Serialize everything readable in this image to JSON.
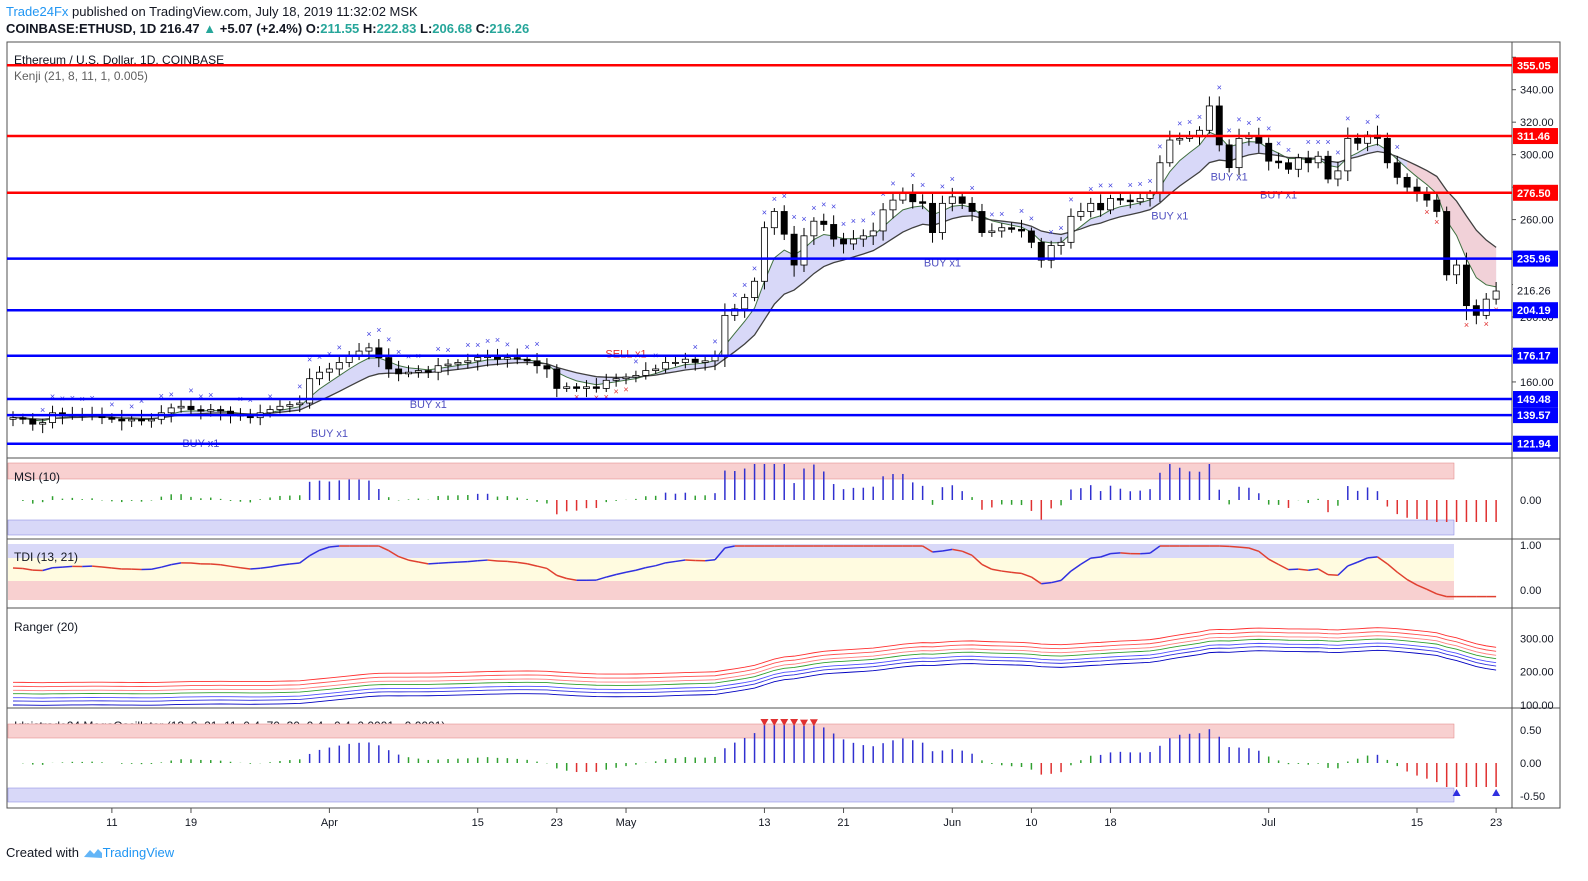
{
  "header": {
    "publisher": "Trade24Fx",
    "published_text": "published on TradingView.com, July 18, 2019 11:32:02 MSK",
    "symbol": "COINBASE:ETHUSD, 1D",
    "last": "216.47",
    "change": "+5.07 (+2.4%)",
    "open_label": "O:",
    "open": "211.55",
    "high_label": "H:",
    "high": "222.83",
    "low_label": "L:",
    "low": "206.68",
    "close_label": "C:",
    "close": "216.26"
  },
  "footer": {
    "created_with": "Created with",
    "brand": "TradingView"
  },
  "colors": {
    "red_level": "#ff0000",
    "blue_level": "#0000ff",
    "up_candle": "#ffffff",
    "down_candle": "#000000",
    "cloud_up": "#c8c8f5",
    "cloud_down": "#f8d0d0",
    "marker": "#4040e0",
    "marker_sell": "#e03030",
    "label_red": "#ff0000",
    "label_blue": "#0000ff"
  },
  "chart_data": [
    {
      "type": "candlestick",
      "title": "Ethereum / U.S. Dollar, 1D, COINBASE",
      "indicator": "Kenji (21, 8, 11, 1, 0.005)",
      "y_ticks": [
        160,
        180,
        200,
        220,
        240,
        260,
        280,
        300,
        320,
        340,
        360
      ],
      "y_tick_labels": [
        "160.00",
        "",
        "200.00",
        "",
        "",
        "260.00",
        "",
        "300.00",
        "320.00",
        "340.00",
        ""
      ],
      "ylim": [
        115,
        370
      ],
      "current_price": "216.26",
      "x_tick_labels": [
        "11",
        "19",
        "Apr",
        "15",
        "23",
        "May",
        "13",
        "21",
        "Jun",
        "10",
        "18",
        "Jul",
        "15",
        "23"
      ],
      "levels": [
        {
          "value": 355.05,
          "label": "355.05",
          "color": "red"
        },
        {
          "value": 311.46,
          "label": "311.46",
          "color": "red"
        },
        {
          "value": 276.5,
          "label": "276.50",
          "color": "red"
        },
        {
          "value": 235.96,
          "label": "235.96",
          "color": "blue"
        },
        {
          "value": 204.19,
          "label": "204.19",
          "color": "blue"
        },
        {
          "value": 176.17,
          "label": "176.17",
          "color": "blue"
        },
        {
          "value": 149.48,
          "label": "149.48",
          "color": "blue"
        },
        {
          "value": 139.57,
          "label": "139.57",
          "color": "blue"
        },
        {
          "value": 121.94,
          "label": "121.94",
          "color": "blue"
        }
      ],
      "annotations": [
        {
          "text": "BUY x1",
          "date_index": 32,
          "value": 126
        },
        {
          "text": "BUY x1",
          "date_index": 19,
          "value": 120
        },
        {
          "text": "BUY x1",
          "date_index": 42,
          "value": 144
        },
        {
          "text": "SELL x1",
          "date_index": 62,
          "value": 175
        },
        {
          "text": "BUY x1",
          "date_index": 94,
          "value": 231
        },
        {
          "text": "BUY x1",
          "date_index": 117,
          "value": 260
        },
        {
          "text": "BUY x1",
          "date_index": 123,
          "value": 284
        },
        {
          "text": "BUY x1",
          "date_index": 128,
          "value": 273
        }
      ],
      "closes": [
        138,
        137,
        134,
        135,
        141,
        139,
        140,
        139,
        140,
        138,
        137,
        136,
        137,
        136,
        137,
        141,
        144,
        145,
        143,
        142,
        143,
        142,
        140,
        139,
        138,
        141,
        143,
        145,
        146,
        147,
        162,
        166,
        168,
        172,
        176,
        179,
        181,
        175,
        168,
        165,
        166,
        167,
        166,
        170,
        171,
        172,
        173,
        175,
        176,
        174,
        175,
        174,
        173,
        170,
        168,
        156,
        157,
        156,
        157,
        156,
        161,
        162,
        163,
        164,
        167,
        168,
        172,
        172,
        174,
        172,
        173,
        176,
        201,
        205,
        212,
        222,
        255,
        265,
        251,
        232,
        250,
        259,
        257,
        248,
        245,
        248,
        250,
        253,
        266,
        272,
        276,
        271,
        270,
        252,
        270,
        274,
        270,
        265,
        252,
        253,
        255,
        254,
        253,
        246,
        235,
        244,
        246,
        262,
        265,
        270,
        266,
        273,
        272,
        271,
        273,
        276,
        295,
        309,
        310,
        311,
        315,
        330,
        306,
        292,
        310,
        311,
        307,
        296,
        295,
        291,
        298,
        295,
        299,
        285,
        290,
        310,
        307,
        312,
        310,
        295,
        286,
        280,
        276,
        272,
        265,
        226,
        232,
        207,
        201,
        211,
        216
      ]
    },
    {
      "type": "bar",
      "title": "MSI (10)",
      "y_tick_labels": [
        "0.00"
      ]
    },
    {
      "type": "line",
      "title": "TDI (13, 21)",
      "y_tick_labels": [
        "1.00",
        "0.00"
      ]
    },
    {
      "type": "line",
      "title": "Ranger (20)",
      "y_tick_labels": [
        "300.00",
        "200.00",
        "100.00"
      ]
    },
    {
      "type": "bar",
      "title": "Idnistrade24 MegaOscillator (13, 8, 21, 11, 0.4, 70, 30, 0.4, -0.4, 0.0001, -0.0001)",
      "y_tick_labels": [
        "0.50",
        "0.00",
        "-0.50"
      ]
    }
  ]
}
